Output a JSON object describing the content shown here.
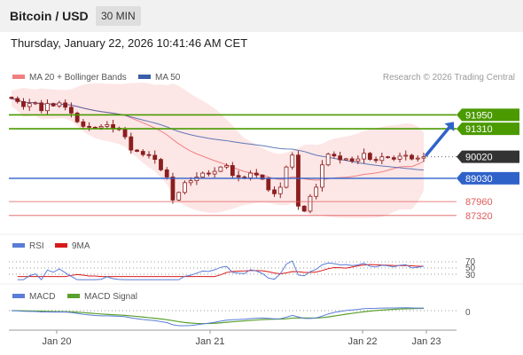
{
  "header": {
    "title": "Bitcoin / USD",
    "timeframe": "30 MIN"
  },
  "datetime": "Thursday, January 22, 2026 10:41:46 AM CET",
  "legend": {
    "ma20": "MA 20 + Bollinger Bands",
    "ma50": "MA 50",
    "credit": "Research © 2026 Trading Central"
  },
  "colors": {
    "ma20": "#f08080",
    "ma50": "#3a5da8",
    "green": "#4a9a00",
    "blue": "#2f62c9",
    "red": "#e05a5a",
    "candle": "#8b1e1e",
    "band": "#fde2e2",
    "current": "#333333"
  },
  "chart_data": [
    {
      "type": "candlestick",
      "x_ticks": [
        "Jan 20",
        "Jan 21",
        "Jan 22",
        "Jan 23"
      ],
      "ylim": [
        86700,
        93150
      ],
      "levels": [
        {
          "label": "91950",
          "value": 91950,
          "style": "resistance"
        },
        {
          "label": "91310",
          "value": 91310,
          "style": "resistance"
        },
        {
          "label": "90020",
          "value": 90020,
          "style": "current"
        },
        {
          "label": "89030",
          "value": 89030,
          "style": "pivot"
        },
        {
          "label": "87960",
          "value": 87960,
          "style": "support"
        },
        {
          "label": "87320",
          "value": 87320,
          "style": "support"
        }
      ],
      "close_path": [
        92700,
        92560,
        92330,
        92470,
        92500,
        92140,
        92470,
        92360,
        92500,
        92300,
        92030,
        91630,
        91420,
        91380,
        91350,
        91420,
        91500,
        91340,
        91270,
        90940,
        90330,
        90270,
        90120,
        90090,
        89900,
        89420,
        89090,
        88030,
        88380,
        88830,
        88920,
        89090,
        89270,
        89230,
        89350,
        89550,
        89620,
        89160,
        89090,
        89050,
        89270,
        89180,
        88990,
        88500,
        88320,
        88620,
        89550,
        90100,
        87750,
        87520,
        88200,
        88620,
        89650,
        90140,
        90060,
        89880,
        89930,
        89820,
        89920,
        90180,
        89900,
        89850,
        90020,
        89980,
        89910,
        90050,
        90090,
        89920,
        89960,
        90020
      ],
      "forecast_target": 91950
    },
    {
      "type": "line",
      "title": "RSI",
      "series": [
        {
          "name": "RSI"
        },
        {
          "name": "9MA"
        }
      ],
      "levels": [
        70,
        50,
        30
      ]
    },
    {
      "type": "line",
      "title": "MACD",
      "series": [
        {
          "name": "MACD"
        },
        {
          "name": "MACD Signal"
        }
      ],
      "zero_label": "0"
    }
  ],
  "rsi": {
    "label": "RSI",
    "ma_label": "9MA",
    "levels": [
      "70",
      "50",
      "30"
    ]
  },
  "macd": {
    "label": "MACD",
    "signal_label": "MACD Signal",
    "zero": "0"
  }
}
